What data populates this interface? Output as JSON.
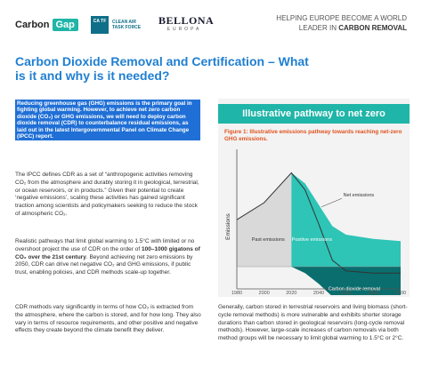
{
  "header": {
    "logo_carbon": "Carbon",
    "logo_gap": "Gap",
    "catf_mark": "CA TF",
    "catf_text": "CLEAN AIR TASK FORCE",
    "bellona_name": "BELLONA",
    "bellona_sub": "EUROPA",
    "tagline_line1": "HELPING EUROPE BECOME A WORLD",
    "tagline_line2_prefix": "LEADER IN ",
    "tagline_line2_bold": "CARBON REMOVAL"
  },
  "title": "Carbon Dioxide Removal and Certification – What is it and why is it needed?",
  "intro": "Reducing greenhouse gas (GHG) emissions is the primary goal in fighting global warming. However, to achieve net zero carbon dioxide (CO₂) or GHG emissions, we will need to deploy carbon dioxide removal (CDR) to counterbalance residual emissions, as laid out in the latest Intergovernmental Panel on Climate Change (IPCC) report.",
  "paragraphs": {
    "p1": "The IPCC defines CDR as a set of “anthropogenic activities removing CO₂ from the atmosphere and durably storing it in geological, terrestrial, or ocean reservoirs, or in products.” Given their potential to create ‘negative emissions’, scaling these activities has gained significant traction among scientists and policymakers seeking to reduce the stock of atmospheric CO₂.",
    "p2_a": "Realistic pathways that limit global warming to 1.5°C with limited or no overshoot project the use of CDR on the order of ",
    "p2_bold": "100–1000 gigatons of CO₂ over the 21st century",
    "p2_b": ". Beyond achieving net zero emissions by 2050, CDR can drive net negative CO₂ and GHG emissions, if public trust, enabling policies, and CDR methods scale-up together.",
    "p3": "CDR methods vary significantly in terms of how CO₂ is extracted from the atmosphere, where the carbon is stored, and for how long. They also vary in terms of resource requirements, and other positive and negative effects they create beyond the climate benefit they deliver.",
    "p4": "Generally, carbon stored in terrestrial reservoirs and living biomass (short-cycle removal methods) is more vulnerable and exhibits shorter storage durations than carbon stored in geological reservoirs (long-cycle removal methods). However, large-scale increases of carbon removals via both method groups will be necessary to limit global warming to 1.5°C or 2°C."
  },
  "panel": {
    "banner": "Illustrative pathway to net zero",
    "caption": "Figure 1: Illustrative emissions pathway towards reaching net-zero GHG emissions."
  },
  "chart_data": {
    "type": "area",
    "ylabel": "Emissions",
    "x_ticks": [
      "1980",
      "2000",
      "2020",
      "2040",
      "2060",
      "2080",
      "2100"
    ],
    "annotations": [
      "Net emissions",
      "Past emissions",
      "Positive emissions",
      "Carbon dioxide removal"
    ],
    "colors": {
      "past": "#d9d9d9",
      "positive": "#2ec4b6",
      "removal": "#0b6e6e",
      "net_line": "#333333"
    },
    "series": [
      {
        "name": "Net emissions",
        "x": [
          1980,
          2000,
          2020,
          2030,
          2040,
          2050,
          2060,
          2080,
          2100
        ],
        "values": [
          2.2,
          3.0,
          4.4,
          3.6,
          2.0,
          0.3,
          -0.2,
          -0.3,
          -0.3
        ]
      }
    ]
  }
}
